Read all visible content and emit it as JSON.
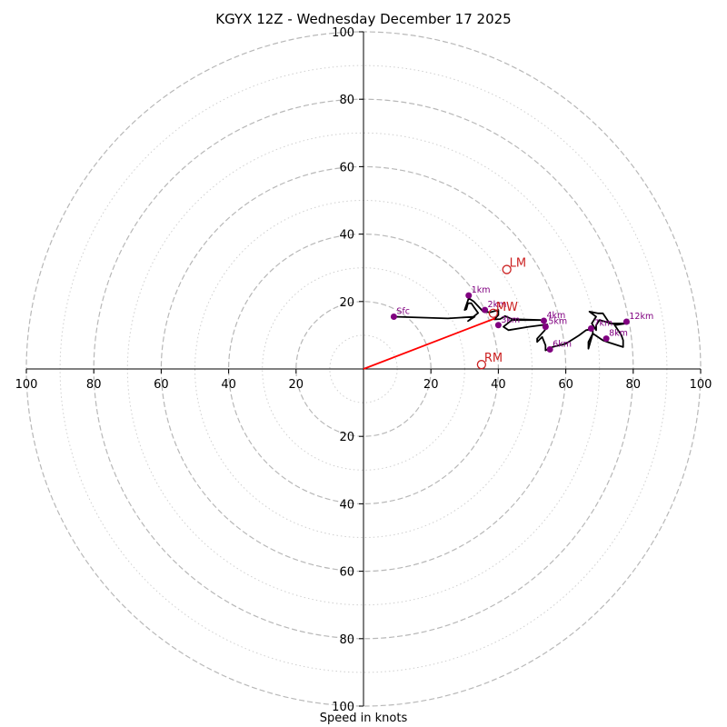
{
  "chart_data": {
    "type": "scatter",
    "title": "KGYX 12Z - Wednesday December 17 2025",
    "xlabel": "Speed in knots",
    "ylabel": "",
    "xlim": [
      -100,
      100
    ],
    "ylim": [
      -100,
      100
    ],
    "ring_major": [
      20,
      40,
      60,
      80,
      100
    ],
    "ring_minor": [
      10,
      30,
      50,
      70,
      90
    ],
    "tick_values": [
      100,
      80,
      60,
      40,
      20
    ],
    "grid": true,
    "hodograph": [
      [
        9,
        15.5
      ],
      [
        25,
        15
      ],
      [
        33,
        15.5
      ],
      [
        31,
        14.2
      ],
      [
        34,
        16.6
      ],
      [
        33,
        18
      ],
      [
        32,
        19.5
      ],
      [
        31,
        19.5
      ],
      [
        30.5,
        17.7
      ],
      [
        30,
        17.5
      ],
      [
        31.2,
        21
      ],
      [
        32.7,
        20
      ],
      [
        35.5,
        17
      ],
      [
        37.5,
        16.8
      ],
      [
        40,
        17.5
      ],
      [
        40,
        16
      ],
      [
        38.8,
        14.7
      ],
      [
        40.5,
        14.8
      ],
      [
        42,
        15.7
      ],
      [
        44,
        14.8
      ],
      [
        52.5,
        14.5
      ],
      [
        44,
        14.5
      ],
      [
        41.5,
        12.5
      ],
      [
        43,
        11.5
      ],
      [
        49,
        12.5
      ],
      [
        54.5,
        13.2
      ],
      [
        53.8,
        11.5
      ],
      [
        51.5,
        9
      ],
      [
        51.5,
        8
      ],
      [
        53,
        9.5
      ],
      [
        54,
        7
      ],
      [
        54,
        5.5
      ],
      [
        55,
        6
      ],
      [
        56,
        6.5
      ],
      [
        60,
        7.5
      ],
      [
        64,
        10
      ],
      [
        66,
        11.5
      ],
      [
        68,
        11.8
      ],
      [
        68,
        10.5
      ],
      [
        66.7,
        8
      ],
      [
        66.7,
        6
      ],
      [
        68,
        10.5
      ],
      [
        71,
        8.5
      ],
      [
        73,
        7.8
      ],
      [
        77,
        6.5
      ],
      [
        77,
        8.5
      ],
      [
        76.5,
        10
      ],
      [
        74.5,
        13
      ],
      [
        78,
        13.5
      ],
      [
        73,
        13.5
      ],
      [
        71,
        16.5
      ],
      [
        69.5,
        16.5
      ],
      [
        67,
        17
      ],
      [
        69,
        15.5
      ],
      [
        67.7,
        13.5
      ],
      [
        69,
        11.5
      ],
      [
        69,
        13
      ],
      [
        70,
        14.5
      ],
      [
        74.5,
        13.3
      ]
    ],
    "height_markers": [
      {
        "label": "Sfc",
        "x": 9,
        "y": 15.5
      },
      {
        "label": "1km",
        "x": 31.2,
        "y": 21.8
      },
      {
        "label": "2km",
        "x": 36,
        "y": 17.5
      },
      {
        "label": "3km",
        "x": 40,
        "y": 13
      },
      {
        "label": "4km",
        "x": 53.5,
        "y": 14.3
      },
      {
        "label": "5km",
        "x": 54,
        "y": 12.5
      },
      {
        "label": "6km",
        "x": 55.3,
        "y": 5.8
      },
      {
        "label": "7km",
        "x": 67.5,
        "y": 12
      },
      {
        "label": "8km",
        "x": 72,
        "y": 9
      },
      {
        "label": "12km",
        "x": 78,
        "y": 14
      }
    ],
    "storm_motion": [
      {
        "label": "LM",
        "x": 42.5,
        "y": 29.5
      },
      {
        "label": "MW",
        "x": 38.5,
        "y": 16.5
      },
      {
        "label": "RM",
        "x": 35,
        "y": 1.3
      }
    ],
    "shear_vector": {
      "from": [
        0,
        0
      ],
      "to": [
        39,
        15
      ]
    },
    "colors": {
      "hodograph": "#000000",
      "markers": "#800080",
      "storm_motion": "#cc2222",
      "shear": "#ff0000",
      "grid": "#b8b8b8"
    }
  }
}
